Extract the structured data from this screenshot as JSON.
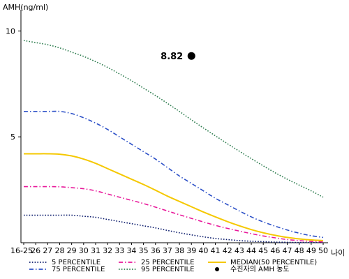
{
  "chart_data": {
    "type": "line",
    "ylabel": "AMH(ng/ml)",
    "xlabel": "나이",
    "ylim": [
      0,
      11
    ],
    "yticks": [
      5,
      10
    ],
    "categories": [
      "16-25",
      "26",
      "27",
      "28",
      "29",
      "30",
      "31",
      "32",
      "33",
      "34",
      "35",
      "36",
      "37",
      "38",
      "39",
      "40",
      "41",
      "42",
      "43",
      "44",
      "45",
      "46",
      "47",
      "48",
      "49",
      "50"
    ],
    "series": [
      {
        "name": "5 PERCENTILE",
        "color": "#0a1a6b",
        "style": "dotted",
        "values": [
          1.3,
          1.3,
          1.3,
          1.3,
          1.3,
          1.25,
          1.2,
          1.1,
          1.0,
          0.9,
          0.8,
          0.7,
          0.58,
          0.47,
          0.37,
          0.28,
          0.2,
          0.15,
          0.1,
          0.07,
          0.05,
          0.03,
          0.02,
          0.01,
          0.01,
          0.01
        ]
      },
      {
        "name": "25 PERCENTILE",
        "color": "#e8189a",
        "style": "dashdot",
        "values": [
          2.65,
          2.65,
          2.65,
          2.64,
          2.6,
          2.55,
          2.45,
          2.3,
          2.15,
          2.0,
          1.85,
          1.68,
          1.5,
          1.32,
          1.15,
          0.98,
          0.82,
          0.68,
          0.55,
          0.43,
          0.32,
          0.23,
          0.15,
          0.1,
          0.06,
          0.04
        ]
      },
      {
        "name": "MEDIAN(50 PERCENTILE)",
        "color": "#f5c800",
        "style": "solid",
        "values": [
          4.2,
          4.2,
          4.2,
          4.18,
          4.1,
          3.95,
          3.75,
          3.5,
          3.25,
          3.0,
          2.75,
          2.48,
          2.2,
          1.95,
          1.7,
          1.45,
          1.22,
          1.0,
          0.8,
          0.62,
          0.47,
          0.35,
          0.25,
          0.18,
          0.13,
          0.1
        ]
      },
      {
        "name": "75 PERCENTILE",
        "color": "#2b4fc7",
        "style": "dashdot",
        "values": [
          6.2,
          6.2,
          6.2,
          6.2,
          6.1,
          5.9,
          5.65,
          5.35,
          5.0,
          4.65,
          4.3,
          3.95,
          3.55,
          3.15,
          2.8,
          2.45,
          2.1,
          1.8,
          1.5,
          1.22,
          0.98,
          0.78,
          0.6,
          0.45,
          0.33,
          0.25
        ]
      },
      {
        "name": "95 PERCENTILE",
        "color": "#2e7d4f",
        "style": "dotted",
        "values": [
          9.55,
          9.45,
          9.35,
          9.2,
          9.0,
          8.8,
          8.55,
          8.28,
          7.97,
          7.65,
          7.3,
          6.95,
          6.58,
          6.2,
          5.8,
          5.42,
          5.05,
          4.68,
          4.32,
          3.97,
          3.63,
          3.3,
          3.0,
          2.72,
          2.45,
          2.15
        ]
      }
    ],
    "points": [
      {
        "name": "수진자의 AMH 농도",
        "label": "8.82",
        "x": "39",
        "y": 8.82,
        "color": "#000000"
      }
    ],
    "legend": {
      "placement": "bottom",
      "items": [
        "5 PERCENTILE",
        "25 PERCENTILE",
        "MEDIAN(50 PERCENTILE)",
        "75 PERCENTILE",
        "95 PERCENTILE",
        "수진자의 AMH 농도"
      ]
    }
  }
}
